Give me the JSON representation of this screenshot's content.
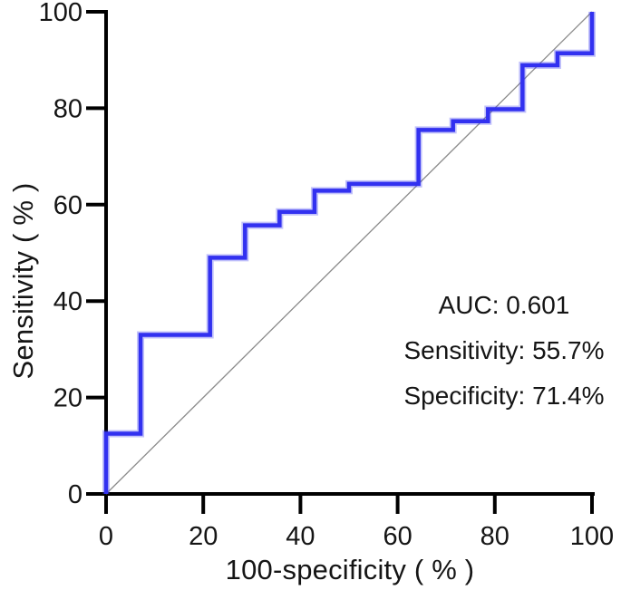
{
  "page": {
    "background": "#ffffff"
  },
  "chart_data": {
    "type": "line",
    "subtype": "roc-curve",
    "title": "",
    "xlabel": "100-specificity（%）",
    "ylabel": "Sensitivity（%）",
    "xlim": [
      0,
      100
    ],
    "ylim": [
      0,
      100
    ],
    "xticks": [
      0,
      20,
      40,
      60,
      80,
      100
    ],
    "yticks": [
      0,
      20,
      40,
      60,
      80,
      100
    ],
    "grid": false,
    "legend": "none",
    "series": [
      {
        "name": "ROC curve",
        "color": "#3231f0",
        "linewidth": 4.5,
        "points": [
          [
            0,
            0
          ],
          [
            0,
            12.5
          ],
          [
            7.1,
            12.5
          ],
          [
            7.1,
            33
          ],
          [
            21.4,
            33
          ],
          [
            21.4,
            49
          ],
          [
            28.6,
            49
          ],
          [
            28.6,
            55.7
          ],
          [
            35.7,
            55.7
          ],
          [
            35.7,
            58.5
          ],
          [
            42.9,
            58.5
          ],
          [
            42.9,
            62.9
          ],
          [
            50,
            62.9
          ],
          [
            50,
            64.3
          ],
          [
            64.3,
            64.3
          ],
          [
            64.3,
            75.5
          ],
          [
            71.4,
            75.5
          ],
          [
            71.4,
            77.3
          ],
          [
            78.6,
            77.3
          ],
          [
            78.6,
            79.8
          ],
          [
            85.7,
            79.8
          ],
          [
            85.7,
            88.9
          ],
          [
            92.9,
            88.9
          ],
          [
            92.9,
            91.4
          ],
          [
            100,
            91.4
          ],
          [
            100,
            100
          ]
        ]
      },
      {
        "name": "chance diagonal",
        "color": "#8a8a8a",
        "linewidth": 1.3,
        "points": [
          [
            0,
            0
          ],
          [
            100,
            100
          ]
        ]
      }
    ],
    "annotations": [
      {
        "label": "AUC: 0.601"
      },
      {
        "label": "Sensitivity: 55.7%"
      },
      {
        "label": "Specificity: 71.4%"
      }
    ],
    "axis_color": "#000000"
  }
}
